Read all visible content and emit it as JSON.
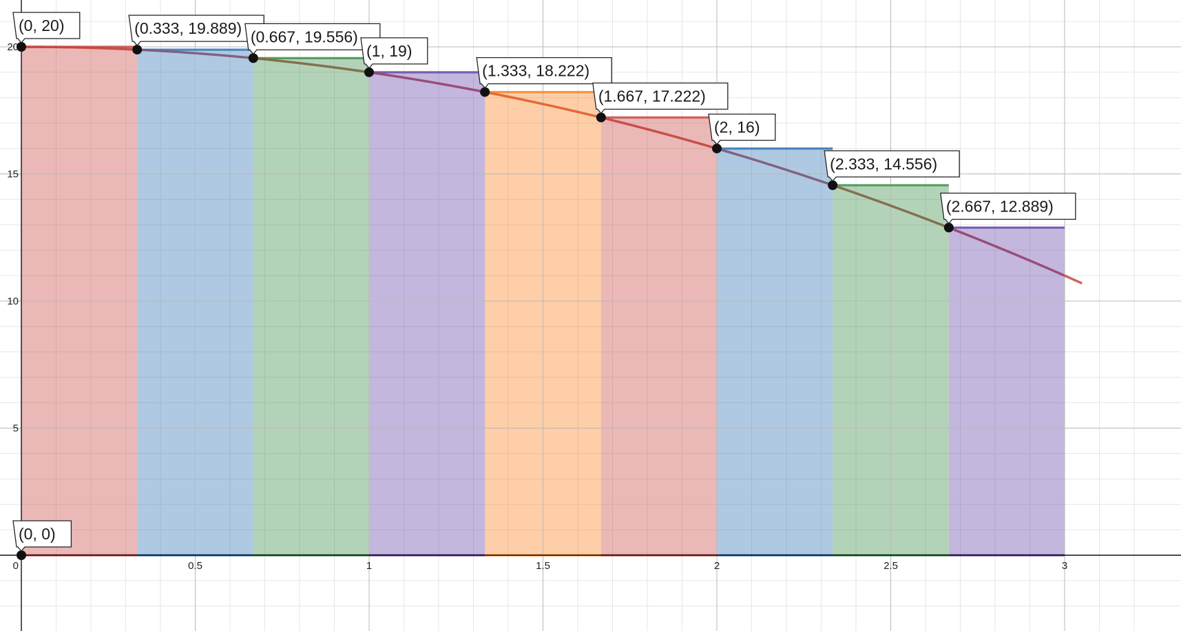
{
  "chart_data": {
    "type": "area",
    "title": "",
    "xlabel": "",
    "ylabel": "",
    "xlim": [
      0,
      3
    ],
    "ylim": [
      0,
      20
    ],
    "grid": true,
    "x_ticks": [
      {
        "value": 0,
        "label": "0"
      },
      {
        "value": 0.5,
        "label": "0.5"
      },
      {
        "value": 1,
        "label": "1"
      },
      {
        "value": 1.5,
        "label": "1.5"
      },
      {
        "value": 2,
        "label": "2"
      },
      {
        "value": 2.5,
        "label": "2.5"
      },
      {
        "value": 3,
        "label": "3"
      }
    ],
    "y_ticks": [
      {
        "value": 5,
        "label": "5"
      },
      {
        "value": 10,
        "label": "10"
      },
      {
        "value": 15,
        "label": "15"
      },
      {
        "value": 20,
        "label": "20"
      }
    ],
    "curve": {
      "color": "#c74440",
      "x": [
        0,
        0.333,
        0.667,
        1,
        1.333,
        1.667,
        2,
        2.333,
        2.667,
        3
      ],
      "y": [
        20,
        19.889,
        19.556,
        19,
        18.222,
        17.222,
        16,
        14.556,
        12.889,
        11
      ]
    },
    "rectangles": [
      {
        "x0": 0,
        "x1": 0.333,
        "height": 20,
        "color": "#c74440"
      },
      {
        "x0": 0.333,
        "x1": 0.667,
        "height": 19.889,
        "color": "#2d70b3"
      },
      {
        "x0": 0.667,
        "x1": 1,
        "height": 19.556,
        "color": "#388c46"
      },
      {
        "x0": 1,
        "x1": 1.333,
        "height": 19,
        "color": "#6042a6"
      },
      {
        "x0": 1.333,
        "x1": 1.667,
        "height": 18.222,
        "color": "#fa7e19"
      },
      {
        "x0": 1.667,
        "x1": 2,
        "height": 17.222,
        "color": "#c74440"
      },
      {
        "x0": 2,
        "x1": 2.333,
        "height": 16,
        "color": "#2d70b3"
      },
      {
        "x0": 2.333,
        "x1": 2.667,
        "height": 14.556,
        "color": "#388c46"
      },
      {
        "x0": 2.667,
        "x1": 3,
        "height": 12.889,
        "color": "#6042a6"
      }
    ],
    "points": [
      {
        "x": 0,
        "y": 0,
        "label": "(0, 0)"
      },
      {
        "x": 0,
        "y": 20,
        "label": "(0, 20)"
      },
      {
        "x": 0.333,
        "y": 19.889,
        "label": "(0.333, 19.889)"
      },
      {
        "x": 0.667,
        "y": 19.556,
        "label": "(0.667, 19.556)"
      },
      {
        "x": 1,
        "y": 19,
        "label": "(1, 19)"
      },
      {
        "x": 1.333,
        "y": 18.222,
        "label": "(1.333, 18.222)"
      },
      {
        "x": 1.667,
        "y": 17.222,
        "label": "(1.667, 17.222)"
      },
      {
        "x": 2,
        "y": 16,
        "label": "(2, 16)"
      },
      {
        "x": 2.333,
        "y": 14.556,
        "label": "(2.333, 14.556)"
      },
      {
        "x": 2.667,
        "y": 12.889,
        "label": "(2.667, 12.889)"
      }
    ]
  }
}
